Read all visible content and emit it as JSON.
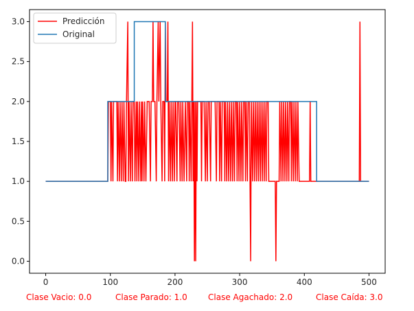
{
  "chart_data": {
    "type": "line",
    "title": "",
    "xlabel": "",
    "ylabel": "",
    "xlim": [
      -25,
      525
    ],
    "ylim": [
      -0.15,
      3.15
    ],
    "grid": false,
    "legend_placement": "upper-left",
    "x_ticks": [
      0,
      100,
      200,
      300,
      400,
      500
    ],
    "y_ticks": [
      0.0,
      0.5,
      1.0,
      1.5,
      2.0,
      2.5,
      3.0
    ],
    "x_tick_labels": [
      "0",
      "100",
      "200",
      "300",
      "400",
      "500"
    ],
    "y_tick_labels": [
      "0.0",
      "0.5",
      "1.0",
      "1.5",
      "2.0",
      "2.5",
      "3.0"
    ],
    "series": [
      {
        "name": "Predicción",
        "color": "#ff0000",
        "points": [
          [
            0,
            1
          ],
          [
            96,
            1
          ],
          [
            97,
            2
          ],
          [
            100,
            2
          ],
          [
            101,
            1
          ],
          [
            102,
            2
          ],
          [
            104,
            1
          ],
          [
            105,
            2
          ],
          [
            110,
            2
          ],
          [
            111,
            1
          ],
          [
            112,
            2
          ],
          [
            114,
            1
          ],
          [
            115,
            2
          ],
          [
            117,
            1
          ],
          [
            118,
            2
          ],
          [
            120,
            1
          ],
          [
            121,
            2
          ],
          [
            123,
            1
          ],
          [
            124,
            1
          ],
          [
            125,
            2
          ],
          [
            127,
            3
          ],
          [
            128,
            1
          ],
          [
            129,
            2
          ],
          [
            131,
            1
          ],
          [
            132,
            2
          ],
          [
            134,
            1
          ],
          [
            135,
            2
          ],
          [
            137,
            2
          ],
          [
            138,
            1
          ],
          [
            140,
            2
          ],
          [
            141,
            1
          ],
          [
            142,
            2
          ],
          [
            144,
            1
          ],
          [
            145,
            2
          ],
          [
            147,
            1
          ],
          [
            148,
            2
          ],
          [
            149,
            1
          ],
          [
            150,
            2
          ],
          [
            152,
            1
          ],
          [
            153,
            2
          ],
          [
            155,
            1
          ],
          [
            157,
            2
          ],
          [
            160,
            2
          ],
          [
            162,
            1
          ],
          [
            163,
            2
          ],
          [
            165,
            2
          ],
          [
            166,
            3
          ],
          [
            167,
            2
          ],
          [
            169,
            2
          ],
          [
            171,
            1
          ],
          [
            172,
            2
          ],
          [
            174,
            3
          ],
          [
            175,
            2
          ],
          [
            177,
            3
          ],
          [
            178,
            2
          ],
          [
            180,
            1
          ],
          [
            181,
            2
          ],
          [
            183,
            2
          ],
          [
            184,
            1
          ],
          [
            185,
            3
          ],
          [
            186,
            2
          ],
          [
            188,
            2
          ],
          [
            189,
            3
          ],
          [
            190,
            1
          ],
          [
            191,
            2
          ],
          [
            193,
            1
          ],
          [
            194,
            2
          ],
          [
            196,
            1
          ],
          [
            197,
            2
          ],
          [
            199,
            1
          ],
          [
            200,
            2
          ],
          [
            201,
            2
          ],
          [
            203,
            1
          ],
          [
            204,
            2
          ],
          [
            206,
            2
          ],
          [
            208,
            1
          ],
          [
            209,
            2
          ],
          [
            211,
            1
          ],
          [
            212,
            2
          ],
          [
            214,
            1
          ],
          [
            216,
            2
          ],
          [
            218,
            1
          ],
          [
            219,
            2
          ],
          [
            221,
            2
          ],
          [
            222,
            1
          ],
          [
            223,
            2
          ],
          [
            225,
            1
          ],
          [
            226,
            2
          ],
          [
            227,
            3
          ],
          [
            228,
            1
          ],
          [
            229,
            2
          ],
          [
            230,
            0
          ],
          [
            231,
            2
          ],
          [
            232,
            0
          ],
          [
            233,
            2
          ],
          [
            234,
            1
          ],
          [
            235,
            2
          ],
          [
            240,
            2
          ],
          [
            241,
            1
          ],
          [
            242,
            2
          ],
          [
            245,
            2
          ],
          [
            247,
            1
          ],
          [
            248,
            2
          ],
          [
            250,
            1
          ],
          [
            251,
            2
          ],
          [
            253,
            2
          ],
          [
            255,
            1
          ],
          [
            256,
            2
          ],
          [
            262,
            2
          ],
          [
            264,
            1
          ],
          [
            265,
            2
          ],
          [
            268,
            2
          ],
          [
            269,
            1
          ],
          [
            270,
            2
          ],
          [
            272,
            1
          ],
          [
            273,
            2
          ],
          [
            276,
            2
          ],
          [
            277,
            1
          ],
          [
            278,
            2
          ],
          [
            280,
            1
          ],
          [
            281,
            2
          ],
          [
            283,
            1
          ],
          [
            284,
            2
          ],
          [
            286,
            1
          ],
          [
            287,
            2
          ],
          [
            289,
            1
          ],
          [
            290,
            2
          ],
          [
            292,
            1
          ],
          [
            293,
            2
          ],
          [
            295,
            2
          ],
          [
            296,
            1
          ],
          [
            297,
            2
          ],
          [
            299,
            1
          ],
          [
            300,
            2
          ],
          [
            302,
            1
          ],
          [
            303,
            2
          ],
          [
            305,
            1
          ],
          [
            306,
            2
          ],
          [
            308,
            2
          ],
          [
            309,
            1
          ],
          [
            310,
            2
          ],
          [
            312,
            1
          ],
          [
            313,
            2
          ],
          [
            315,
            2
          ],
          [
            316,
            1
          ],
          [
            317,
            0
          ],
          [
            318,
            2
          ],
          [
            320,
            1
          ],
          [
            321,
            2
          ],
          [
            323,
            1
          ],
          [
            324,
            2
          ],
          [
            326,
            1
          ],
          [
            327,
            2
          ],
          [
            329,
            1
          ],
          [
            330,
            2
          ],
          [
            332,
            1
          ],
          [
            333,
            2
          ],
          [
            335,
            1
          ],
          [
            336,
            2
          ],
          [
            338,
            1
          ],
          [
            339,
            2
          ],
          [
            341,
            1
          ],
          [
            342,
            2
          ],
          [
            344,
            2
          ],
          [
            345,
            1
          ],
          [
            355,
            1
          ],
          [
            356,
            0
          ],
          [
            357,
            1
          ],
          [
            361,
            1
          ],
          [
            362,
            2
          ],
          [
            364,
            1
          ],
          [
            365,
            2
          ],
          [
            367,
            1
          ],
          [
            368,
            2
          ],
          [
            370,
            1
          ],
          [
            371,
            2
          ],
          [
            373,
            1
          ],
          [
            374,
            2
          ],
          [
            376,
            1
          ],
          [
            377,
            2
          ],
          [
            379,
            2
          ],
          [
            380,
            1
          ],
          [
            381,
            2
          ],
          [
            383,
            1
          ],
          [
            384,
            2
          ],
          [
            386,
            1
          ],
          [
            387,
            2
          ],
          [
            389,
            1
          ],
          [
            390,
            2
          ],
          [
            392,
            1
          ],
          [
            393,
            1
          ],
          [
            408,
            1
          ],
          [
            409,
            2
          ],
          [
            410,
            1
          ],
          [
            485,
            1
          ],
          [
            486,
            3
          ],
          [
            487,
            1
          ],
          [
            500,
            1
          ]
        ]
      },
      {
        "name": "Original",
        "color": "#1f77b4",
        "points": [
          [
            0,
            1
          ],
          [
            96,
            1
          ],
          [
            96,
            2
          ],
          [
            137,
            2
          ],
          [
            137,
            3
          ],
          [
            185,
            3
          ],
          [
            185,
            2
          ],
          [
            419,
            2
          ],
          [
            419,
            1
          ],
          [
            500,
            1
          ]
        ]
      }
    ],
    "annotations": [
      "Clase Vacio: 0.0",
      "Clase Parado: 1.0",
      "Clase Agachado: 2.0",
      "Clase Caída: 3.0"
    ]
  }
}
